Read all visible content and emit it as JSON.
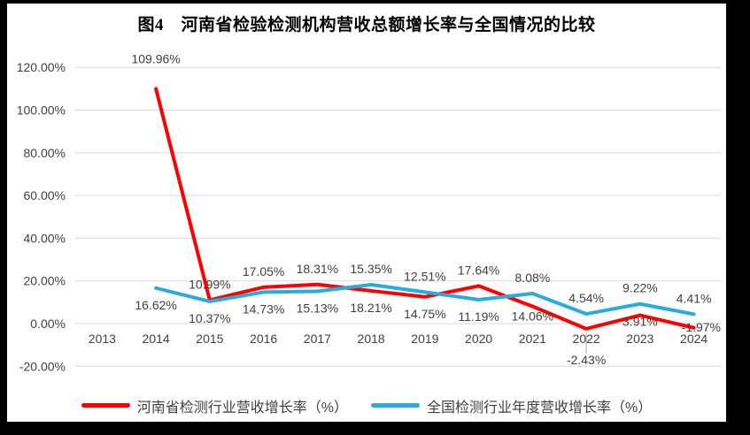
{
  "title": "图4　河南省检验检测机构营收总额增长率与全国情况的比较",
  "colors": {
    "frame_bg": "#000000",
    "card_bg": "#ffffff",
    "grid": "#d9d9d9",
    "axis_text": "#404040",
    "leader_line": "#a6a6a6",
    "henan_red": "#ff0000",
    "national_blue": "#29abe2"
  },
  "chart_data": {
    "type": "line",
    "title": "图4　河南省检验检测机构营收总额增长率与全国情况的比较",
    "categories": [
      "2013",
      "2014",
      "2015",
      "2016",
      "2017",
      "2018",
      "2019",
      "2020",
      "2021",
      "2022",
      "2023",
      "2024"
    ],
    "series": [
      {
        "key": "henan",
        "name": "河南省检测行业营收增长率（%）",
        "color": "#ff0000",
        "values": [
          null,
          109.96,
          10.99,
          17.05,
          18.31,
          15.35,
          12.51,
          17.64,
          8.08,
          -2.43,
          3.91,
          -1.97
        ],
        "labels": [
          null,
          "109.96%",
          "10.99%",
          "17.05%",
          "18.31%",
          "15.35%",
          "12.51%",
          "17.64%",
          "8.08%",
          "-2.43%",
          "3.91%",
          "-1.97%"
        ],
        "label_side": [
          null,
          "above",
          "above",
          "above",
          "above",
          "above",
          "above",
          "above",
          "above",
          "below-leader",
          "below",
          "right"
        ],
        "label_dy": [
          0,
          -16,
          0,
          0,
          0,
          0,
          0,
          0,
          0,
          0,
          -12,
          0
        ]
      },
      {
        "key": "national",
        "name": "全国检测行业年度营收增长率（%）",
        "color": "#29abe2",
        "values": [
          null,
          16.62,
          10.37,
          14.73,
          15.13,
          18.21,
          14.75,
          11.19,
          14.06,
          4.54,
          9.22,
          4.41
        ],
        "labels": [
          null,
          "16.62%",
          "10.37%",
          "14.73%",
          "15.13%",
          "18.21%",
          "14.75%",
          "11.19%",
          "14.06%",
          "4.54%",
          "9.22%",
          "4.41%"
        ],
        "label_side": [
          null,
          "below",
          "below",
          "below",
          "below",
          "below",
          "below",
          "below",
          "below",
          "above",
          "above",
          "above"
        ],
        "label_dy": [
          0,
          0,
          0,
          0,
          0,
          0,
          0,
          0,
          -8,
          0,
          0,
          0
        ]
      }
    ],
    "ylim": [
      -20,
      120
    ],
    "yticks": [
      {
        "v": 120,
        "label": "120.00%"
      },
      {
        "v": 100,
        "label": "100.00%"
      },
      {
        "v": 80,
        "label": "80.00%"
      },
      {
        "v": 60,
        "label": "60.00%"
      },
      {
        "v": 40,
        "label": "40.00%"
      },
      {
        "v": 20,
        "label": "20.00%"
      },
      {
        "v": 0,
        "label": "0.00%"
      },
      {
        "v": -20,
        "label": "-20.00%"
      }
    ],
    "grid": true,
    "legend_position": "bottom"
  }
}
